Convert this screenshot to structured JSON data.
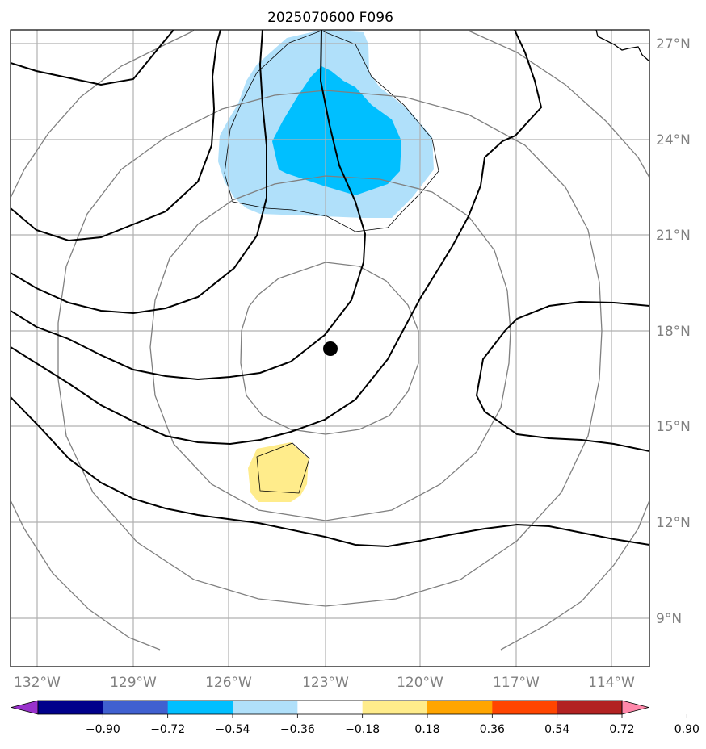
{
  "title": "2025070600 F096",
  "map": {
    "lon_range": [
      -133,
      -113.5
    ],
    "lat_range": [
      7,
      27.4
    ],
    "grid": true,
    "lat_labels": [
      "27°N",
      "24°N",
      "21°N",
      "18°N",
      "15°N",
      "12°N",
      "9°N"
    ],
    "lon_labels": [
      "132°W",
      "129°W",
      "126°W",
      "123°W",
      "120°W",
      "117°W",
      "114°W"
    ],
    "center_marker": {
      "lon": -122.8,
      "lat": 17.4
    },
    "range_rings_color": "#808080",
    "contour_color": "#000000"
  },
  "colorbar": {
    "ticks": [
      "−0.90",
      "−0.72",
      "−0.54",
      "−0.36",
      "−0.18",
      "0.18",
      "0.36",
      "0.54",
      "0.72",
      "0.90"
    ],
    "colors": [
      "#9932cc",
      "#00008b",
      "#4060d0",
      "#00bfff",
      "#b0e0fa",
      "#ffffff",
      "#ffec8b",
      "#ffa500",
      "#ff4500",
      "#b22222",
      "#ff88aa"
    ]
  },
  "shaded_regions": [
    {
      "name": "light-blue-region",
      "color": "#b0e0fa"
    },
    {
      "name": "blue-region",
      "color": "#00bfff"
    },
    {
      "name": "yellow-region",
      "color": "#ffec8b"
    }
  ]
}
